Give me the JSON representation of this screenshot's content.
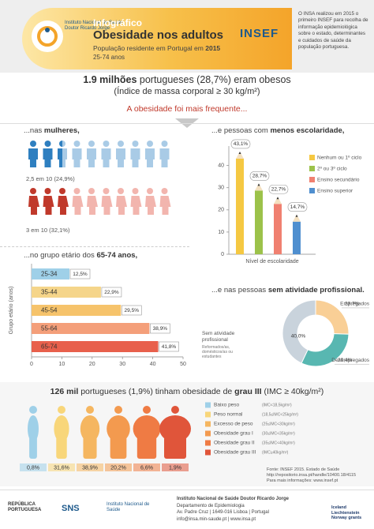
{
  "header": {
    "org": "Instituto Nacional de Saúde",
    "org_sub": "Doutor Ricardo Jorge",
    "kicker": "Infográfico",
    "title": "Obesidade nos adultos",
    "subtitle": "População residente em Portugal em",
    "year": "2015",
    "age": "25-74 anos",
    "logo": "INSEF"
  },
  "intro": "O INSA realizou em 2015 o primeiro INSEF para recolha de informação epidemiológica sobre o estado, determinantes e cuidados de saúde da população portuguesa.",
  "headline": {
    "bold": "1.9 milhões",
    "rest": "portugueses (28,7%) eram obesos",
    "sub": "(Índice de massa corporal ≥ 30 kg/m²)"
  },
  "lead": "A obesidade foi mais frequente...",
  "sex": {
    "pre": "...nas",
    "bold": "mulheres,",
    "men": {
      "value": 2.5,
      "label": "2,5 em 10 (24,9%)",
      "color": "#2e7fc0",
      "light": "#a9cbe6"
    },
    "women": {
      "value": 3,
      "label": "3 em 10 (32,1%)",
      "color": "#c0392b",
      "light": "#f2b5ae"
    }
  },
  "chart_data": [
    {
      "type": "bar",
      "title_pre": "...e pessoas com",
      "title_bold": "menos escolaridade,",
      "x_label": "Nível de escolaridade",
      "categories": [
        "Nenhum ou 1º ciclo",
        "2º ou 3º ciclo",
        "Ensino secundário",
        "Ensino superior"
      ],
      "values": [
        43.1,
        28.7,
        22.7,
        14.7
      ],
      "value_labels": [
        "43,1%",
        "28,7%",
        "22,7%",
        "14,7%"
      ],
      "colors": [
        "#f5c842",
        "#9cc24a",
        "#f08070",
        "#4f8fcf"
      ],
      "ylim": [
        0,
        47
      ],
      "yticks": [
        0,
        10,
        20,
        30,
        40
      ],
      "legend": "right"
    },
    {
      "type": "hbar",
      "title_pre": "...no grupo etário dos",
      "title_bold": "65-74 anos,",
      "y_label": "Grupo etário (anos)",
      "categories": [
        "25-34",
        "35-44",
        "45-54",
        "55-64",
        "65-74"
      ],
      "values": [
        12.5,
        22.9,
        29.5,
        38.9,
        41.8
      ],
      "value_labels": [
        "12,5%",
        "22,9%",
        "29,5%",
        "38,9%",
        "41,8%"
      ],
      "colors": [
        "#9fd0e8",
        "#f5d58a",
        "#f6c36b",
        "#f49f7a",
        "#e8604c"
      ],
      "xlim": [
        0,
        50
      ],
      "xticks": [
        0,
        10,
        20,
        30,
        40,
        50
      ]
    },
    {
      "type": "donut",
      "title_pre": "...e nas pessoas",
      "title_bold": "sem atividade profissional.",
      "group_label": "Sem atividade profissional",
      "categories": [
        "Empregados",
        "Desempregados",
        "Reformados/as, domésticos/as ou estudantes"
      ],
      "values": [
        23.7,
        29.4,
        40.0
      ],
      "value_labels": [
        "23,7%",
        "29,4%",
        "40,0%"
      ],
      "colors": [
        "#f9cf96",
        "#58b7b1",
        "#c9d3dc"
      ]
    }
  ],
  "bmi": {
    "bold": "126 mil",
    "mid": "portugueses (1,9%) tinham obesidade de",
    "bold2": "grau III",
    "end": "(IMC ≥ 40kg/m²)",
    "classes": [
      {
        "name": "Baixo peso",
        "range": "(IMC<18,5kg/m²)",
        "value_label": "0,8%",
        "color": "#9fd0e8"
      },
      {
        "name": "Peso normal",
        "range": "(18,5≤IMC<25kg/m²)",
        "value_label": "31,6%",
        "color": "#f8d67a"
      },
      {
        "name": "Excesso de peso",
        "range": "(25≤IMC<30kg/m²)",
        "value_label": "38,9%",
        "color": "#f5b660"
      },
      {
        "name": "Obesidade grau I",
        "range": "(30≤IMC<35kg/m²)",
        "value_label": "20,2%",
        "color": "#f39a4f"
      },
      {
        "name": "Obesidade grau II",
        "range": "(35≤IMC<40kg/m²)",
        "value_label": "6,6%",
        "color": "#ef7b44"
      },
      {
        "name": "Obesidade grau III",
        "range": "(IMC≥40kg/m²)",
        "value_label": "1,9%",
        "color": "#e0553a"
      }
    ]
  },
  "source": {
    "text": "Fonte: INSEF 2015. Estado de Saúde",
    "url": "http://repositorio.insa.pt/handle/10400.18/4115",
    "more": "Para mais informações: www.insef.pt"
  },
  "footer": {
    "republic": "REPÚBLICA PORTUGUESA",
    "sns": "SNS",
    "inst": "Instituto Nacional de Saúde Doutor Ricardo Jorge",
    "dept": "Departamento de Epidemiologia",
    "address": "Av. Padre Cruz | 1649-016 Lisboa | Portugal",
    "contact": "info@insa.min-saude.pt | www.insa.pt",
    "grants": "Iceland Liechtenstein Norway grants"
  }
}
